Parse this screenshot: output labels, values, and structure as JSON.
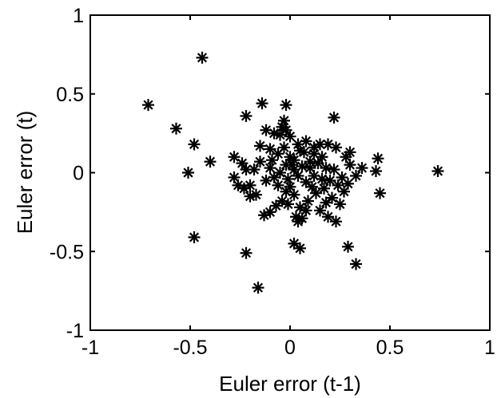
{
  "chart_data": {
    "type": "scatter",
    "title": "",
    "xlabel": "Euler error (t-1)",
    "ylabel": "Euler error (t)",
    "xlim": [
      -1,
      1
    ],
    "ylim": [
      -1,
      1
    ],
    "xticks": [
      "-1",
      "-0.5",
      "0",
      "0.5",
      "1"
    ],
    "yticks": [
      "-1",
      "-0.5",
      "0",
      "0.5",
      "1"
    ],
    "grid": false,
    "marker": "asterisk",
    "marker_color": "#000000",
    "points": [
      [
        -0.44,
        0.73
      ],
      [
        -0.71,
        0.43
      ],
      [
        -0.57,
        0.28
      ],
      [
        -0.48,
        0.18
      ],
      [
        -0.51,
        0.0
      ],
      [
        -0.4,
        0.07
      ],
      [
        -0.48,
        -0.41
      ],
      [
        -0.22,
        0.36
      ],
      [
        -0.14,
        0.44
      ],
      [
        -0.02,
        0.43
      ],
      [
        -0.03,
        0.33
      ],
      [
        -0.04,
        0.29
      ],
      [
        -0.02,
        0.27
      ],
      [
        -0.05,
        0.24
      ],
      [
        0.0,
        0.23
      ],
      [
        -0.08,
        0.25
      ],
      [
        -0.12,
        0.27
      ],
      [
        0.22,
        0.35
      ],
      [
        0.44,
        0.09
      ],
      [
        0.43,
        0.01
      ],
      [
        0.45,
        -0.13
      ],
      [
        0.36,
        0.03
      ],
      [
        0.33,
        -0.02
      ],
      [
        0.3,
        0.05
      ],
      [
        0.28,
        0.1
      ],
      [
        0.29,
        -0.07
      ],
      [
        0.27,
        -0.12
      ],
      [
        0.23,
        0.16
      ],
      [
        0.19,
        0.18
      ],
      [
        0.15,
        0.18
      ],
      [
        0.12,
        0.12
      ],
      [
        0.08,
        0.2
      ],
      [
        0.05,
        0.14
      ],
      [
        0.02,
        0.08
      ],
      [
        0.0,
        0.1
      ],
      [
        -0.02,
        0.05
      ],
      [
        -0.05,
        0.0
      ],
      [
        -0.08,
        -0.03
      ],
      [
        -0.1,
        0.03
      ],
      [
        -0.12,
        -0.05
      ],
      [
        -0.15,
        0.07
      ],
      [
        -0.18,
        0.02
      ],
      [
        -0.2,
        -0.08
      ],
      [
        -0.23,
        -0.1
      ],
      [
        -0.26,
        -0.08
      ],
      [
        -0.28,
        0.1
      ],
      [
        -0.24,
        0.06
      ],
      [
        -0.22,
        0.02
      ],
      [
        -0.28,
        -0.03
      ],
      [
        -0.15,
        0.17
      ],
      [
        -0.1,
        0.15
      ],
      [
        -0.06,
        0.12
      ],
      [
        -0.03,
        0.16
      ],
      [
        0.02,
        0.02
      ],
      [
        0.04,
        -0.02
      ],
      [
        0.06,
        0.04
      ],
      [
        0.08,
        -0.06
      ],
      [
        0.1,
        0.03
      ],
      [
        0.12,
        -0.02
      ],
      [
        0.14,
        0.06
      ],
      [
        0.16,
        -0.04
      ],
      [
        0.18,
        0.03
      ],
      [
        0.2,
        -0.05
      ],
      [
        0.22,
        0.02
      ],
      [
        0.24,
        -0.08
      ],
      [
        0.26,
        -0.03
      ],
      [
        0.17,
        -0.1
      ],
      [
        0.13,
        -0.13
      ],
      [
        0.09,
        -0.18
      ],
      [
        0.05,
        -0.22
      ],
      [
        0.02,
        -0.14
      ],
      [
        0.0,
        -0.09
      ],
      [
        -0.02,
        -0.12
      ],
      [
        -0.04,
        -0.18
      ],
      [
        -0.07,
        -0.21
      ],
      [
        -0.1,
        -0.25
      ],
      [
        -0.13,
        -0.27
      ],
      [
        -0.17,
        -0.14
      ],
      [
        -0.2,
        -0.15
      ],
      [
        0.03,
        -0.28
      ],
      [
        0.04,
        -0.31
      ],
      [
        0.06,
        -0.29
      ],
      [
        0.15,
        -0.24
      ],
      [
        0.19,
        -0.28
      ],
      [
        0.23,
        -0.31
      ],
      [
        0.02,
        -0.45
      ],
      [
        0.05,
        -0.48
      ],
      [
        -0.22,
        -0.51
      ],
      [
        -0.16,
        -0.73
      ],
      [
        0.29,
        -0.47
      ],
      [
        0.33,
        -0.58
      ],
      [
        0.74,
        0.01
      ],
      [
        0.3,
        0.13
      ],
      [
        0.1,
        0.07
      ],
      [
        -0.01,
        -0.04
      ],
      [
        0.07,
        0.13
      ],
      [
        0.11,
        -0.09
      ],
      [
        -0.06,
        -0.08
      ],
      [
        0.01,
        0.05
      ],
      [
        0.16,
        0.1
      ],
      [
        0.21,
        -0.16
      ],
      [
        0.08,
        -0.24
      ],
      [
        -0.09,
        0.08
      ],
      [
        0.04,
        0.18
      ],
      [
        0.25,
        -0.2
      ],
      [
        -0.01,
        -0.2
      ],
      [
        0.12,
        0.16
      ],
      [
        0.18,
        -0.19
      ]
    ]
  }
}
